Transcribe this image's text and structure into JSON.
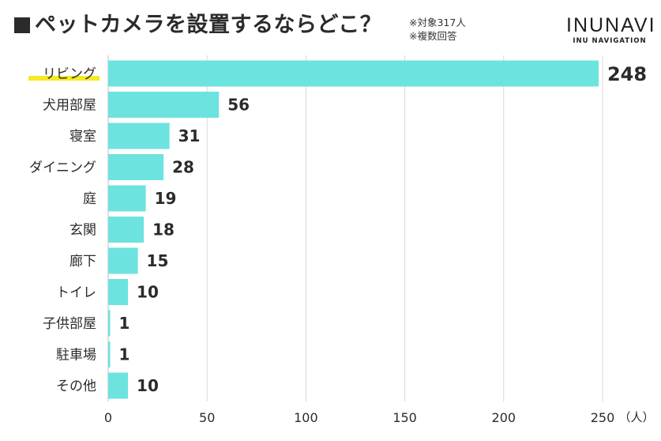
{
  "header": {
    "title": "ペットカメラを設置するならどこ？",
    "note_respondents": "※対象317人",
    "note_multiple": "※複数回答",
    "brand_name": "INUNAVI",
    "brand_sub": "INU NAVIGATION"
  },
  "colors": {
    "bar": "#6ce3df",
    "grid": "#d9d9d9",
    "highlight": "#f2e600",
    "text": "#2b2b2b"
  },
  "chart_data": {
    "type": "bar",
    "orientation": "horizontal",
    "title": "ペットカメラを設置するならどこ？",
    "categories": [
      "リビング",
      "犬用部屋",
      "寝室",
      "ダイニング",
      "庭",
      "玄関",
      "廊下",
      "トイレ",
      "子供部屋",
      "駐車場",
      "その他"
    ],
    "values": [
      248,
      56,
      31,
      28,
      19,
      18,
      15,
      10,
      1,
      1,
      10
    ],
    "xlim": [
      0,
      250
    ],
    "xticks": [
      0,
      50,
      100,
      150,
      200,
      250
    ],
    "unit": "（人）",
    "grid": true,
    "highlight_category": "リビング"
  }
}
